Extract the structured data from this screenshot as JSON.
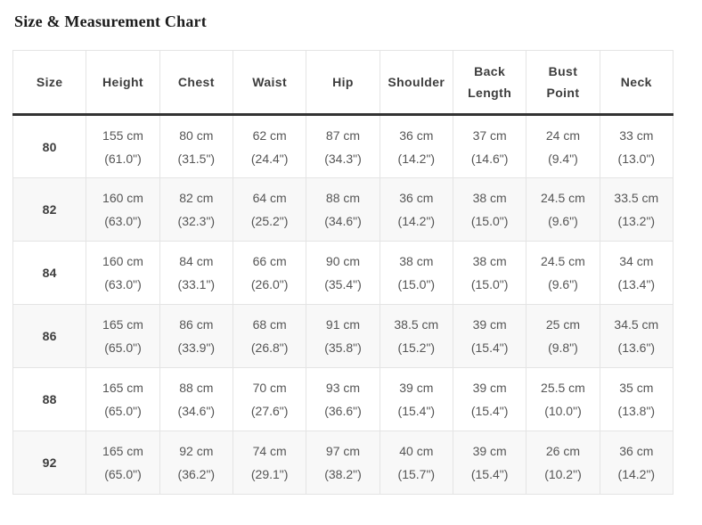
{
  "page": {
    "title": "Size & Measurement Chart"
  },
  "colors": {
    "header_border_dark": "#333333",
    "cell_border": "#e4e4e4",
    "alt_row_bg": "#f8f8f8",
    "body_text": "#555555",
    "header_text": "#3d3d3d"
  },
  "table": {
    "columns": [
      "Size",
      "Height",
      "Chest",
      "Waist",
      "Hip",
      "Shoulder",
      "Back Length",
      "Bust Point",
      "Neck"
    ],
    "rows": [
      {
        "size": "80",
        "values": [
          [
            "155 cm",
            "(61.0\")"
          ],
          [
            "80 cm",
            "(31.5\")"
          ],
          [
            "62 cm",
            "(24.4\")"
          ],
          [
            "87 cm",
            "(34.3\")"
          ],
          [
            "36 cm",
            "(14.2\")"
          ],
          [
            "37 cm",
            "(14.6\")"
          ],
          [
            "24 cm",
            "(9.4\")"
          ],
          [
            "33 cm",
            "(13.0\")"
          ]
        ]
      },
      {
        "size": "82",
        "values": [
          [
            "160 cm",
            "(63.0\")"
          ],
          [
            "82 cm",
            "(32.3\")"
          ],
          [
            "64 cm",
            "(25.2\")"
          ],
          [
            "88 cm",
            "(34.6\")"
          ],
          [
            "36 cm",
            "(14.2\")"
          ],
          [
            "38 cm",
            "(15.0\")"
          ],
          [
            "24.5 cm",
            "(9.6\")"
          ],
          [
            "33.5 cm",
            "(13.2\")"
          ]
        ]
      },
      {
        "size": "84",
        "values": [
          [
            "160 cm",
            "(63.0\")"
          ],
          [
            "84 cm",
            "(33.1\")"
          ],
          [
            "66 cm",
            "(26.0\")"
          ],
          [
            "90 cm",
            "(35.4\")"
          ],
          [
            "38 cm",
            "(15.0\")"
          ],
          [
            "38 cm",
            "(15.0\")"
          ],
          [
            "24.5 cm",
            "(9.6\")"
          ],
          [
            "34 cm",
            "(13.4\")"
          ]
        ]
      },
      {
        "size": "86",
        "values": [
          [
            "165 cm",
            "(65.0\")"
          ],
          [
            "86 cm",
            "(33.9\")"
          ],
          [
            "68 cm",
            "(26.8\")"
          ],
          [
            "91 cm",
            "(35.8\")"
          ],
          [
            "38.5 cm",
            "(15.2\")"
          ],
          [
            "39 cm",
            "(15.4\")"
          ],
          [
            "25 cm",
            "(9.8\")"
          ],
          [
            "34.5 cm",
            "(13.6\")"
          ]
        ]
      },
      {
        "size": "88",
        "values": [
          [
            "165 cm",
            "(65.0\")"
          ],
          [
            "88 cm",
            "(34.6\")"
          ],
          [
            "70 cm",
            "(27.6\")"
          ],
          [
            "93 cm",
            "(36.6\")"
          ],
          [
            "39 cm",
            "(15.4\")"
          ],
          [
            "39 cm",
            "(15.4\")"
          ],
          [
            "25.5 cm",
            "(10.0\")"
          ],
          [
            "35 cm",
            "(13.8\")"
          ]
        ]
      },
      {
        "size": "92",
        "values": [
          [
            "165 cm",
            "(65.0\")"
          ],
          [
            "92 cm",
            "(36.2\")"
          ],
          [
            "74 cm",
            "(29.1\")"
          ],
          [
            "97 cm",
            "(38.2\")"
          ],
          [
            "40 cm",
            "(15.7\")"
          ],
          [
            "39 cm",
            "(15.4\")"
          ],
          [
            "26 cm",
            "(10.2\")"
          ],
          [
            "36 cm",
            "(14.2\")"
          ]
        ]
      }
    ]
  }
}
